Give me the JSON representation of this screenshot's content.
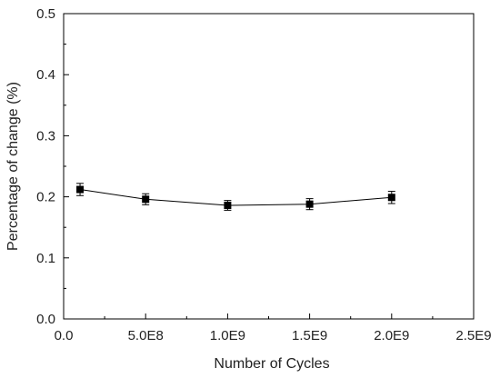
{
  "chart_data": {
    "type": "line",
    "title": "",
    "xlabel": "Number of Cycles",
    "ylabel": "Percentage of change (%)",
    "xlim": [
      0,
      2500000000
    ],
    "ylim": [
      0,
      0.5
    ],
    "x_ticks": [
      0,
      500000000,
      1000000000,
      1500000000,
      2000000000,
      2500000000
    ],
    "x_tick_labels": [
      "0.0",
      "5.0E8",
      "1.0E9",
      "1.5E9",
      "2.0E9",
      "2.5E9"
    ],
    "y_ticks": [
      0,
      0.1,
      0.2,
      0.3,
      0.4,
      0.5
    ],
    "y_tick_labels": [
      "0.0",
      "0.1",
      "0.2",
      "0.3",
      "0.4",
      "0.5"
    ],
    "grid": false,
    "legend": false,
    "marker": "square",
    "color": "#000000",
    "series": [
      {
        "x": [
          100000000,
          500000000,
          1000000000,
          1500000000,
          2000000000
        ],
        "y": [
          0.212,
          0.196,
          0.186,
          0.188,
          0.199
        ],
        "error": [
          0.01,
          0.009,
          0.008,
          0.009,
          0.01
        ]
      }
    ]
  }
}
